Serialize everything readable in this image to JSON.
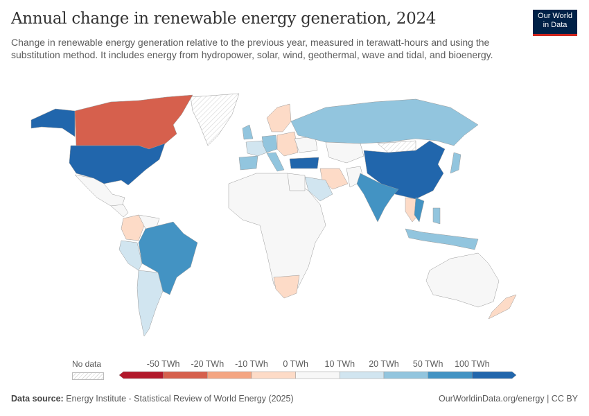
{
  "header": {
    "title": "Annual change in renewable energy generation, 2024",
    "subtitle": "Change in renewable energy generation relative to the previous year, measured in terawatt-hours and using the substitution method. It includes energy from hydropower, solar, wind, geothermal, wave and tidal, and bioenergy.",
    "logo_line1": "Our World",
    "logo_line2": "in Data"
  },
  "legend": {
    "no_data": "No data",
    "ticks": [
      "-50 TWh",
      "-20 TWh",
      "-10 TWh",
      "0 TWh",
      "10 TWh",
      "20 TWh",
      "50 TWh",
      "100 TWh"
    ],
    "colors": [
      "#b2182b",
      "#d6604d",
      "#f4a582",
      "#fddbc7",
      "#f7f7f7",
      "#d1e5f0",
      "#92c5de",
      "#4393c3",
      "#2166ac"
    ]
  },
  "footer": {
    "source_label": "Data source:",
    "source": "Energy Institute - Statistical Review of World Energy (2025)",
    "url": "OurWorldinData.org/energy | CC BY"
  }
}
